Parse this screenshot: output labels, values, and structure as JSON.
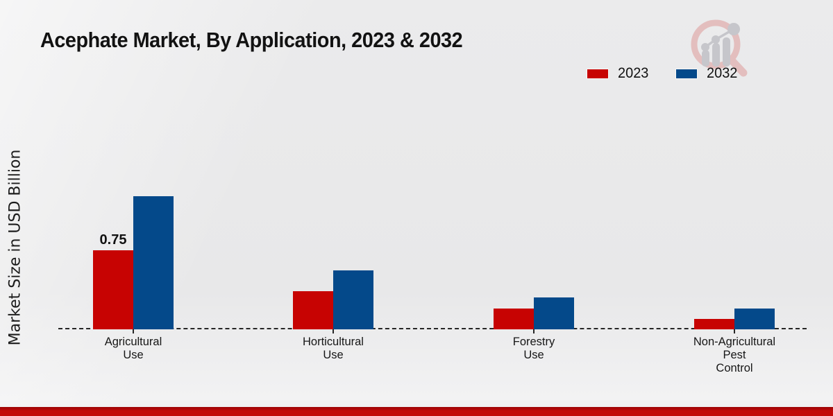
{
  "page": {
    "background_color": "#e8e8e9",
    "accent_bar_color": "#c30909"
  },
  "branding": {
    "logo": "magnifier-bar-chart-logo",
    "ring_color": "#e3bebe",
    "glyph_color": "#c6c6cb"
  },
  "chart_data": {
    "type": "bar",
    "title": "Acephate Market, By Application, 2023 & 2032",
    "ylabel": "Market Size in USD Billion",
    "xlabel": "",
    "categories": [
      "Agricultural\nUse",
      "Horticultural\nUse",
      "Forestry\nUse",
      "Non-Agricultural\nPest\nControl"
    ],
    "series": [
      {
        "name": "2023",
        "color": "#c70302",
        "values": [
          0.75,
          0.36,
          0.2,
          0.1
        ]
      },
      {
        "name": "2032",
        "color": "#04498a",
        "values": [
          1.26,
          0.56,
          0.3,
          0.2
        ]
      }
    ],
    "bar_labels": [
      {
        "series": "2023",
        "category_index": 0,
        "text": "0.75"
      }
    ],
    "ylim": [
      0,
      1.4
    ],
    "grid": false,
    "legend_position": "top-right",
    "baseline_style": "dashed"
  }
}
